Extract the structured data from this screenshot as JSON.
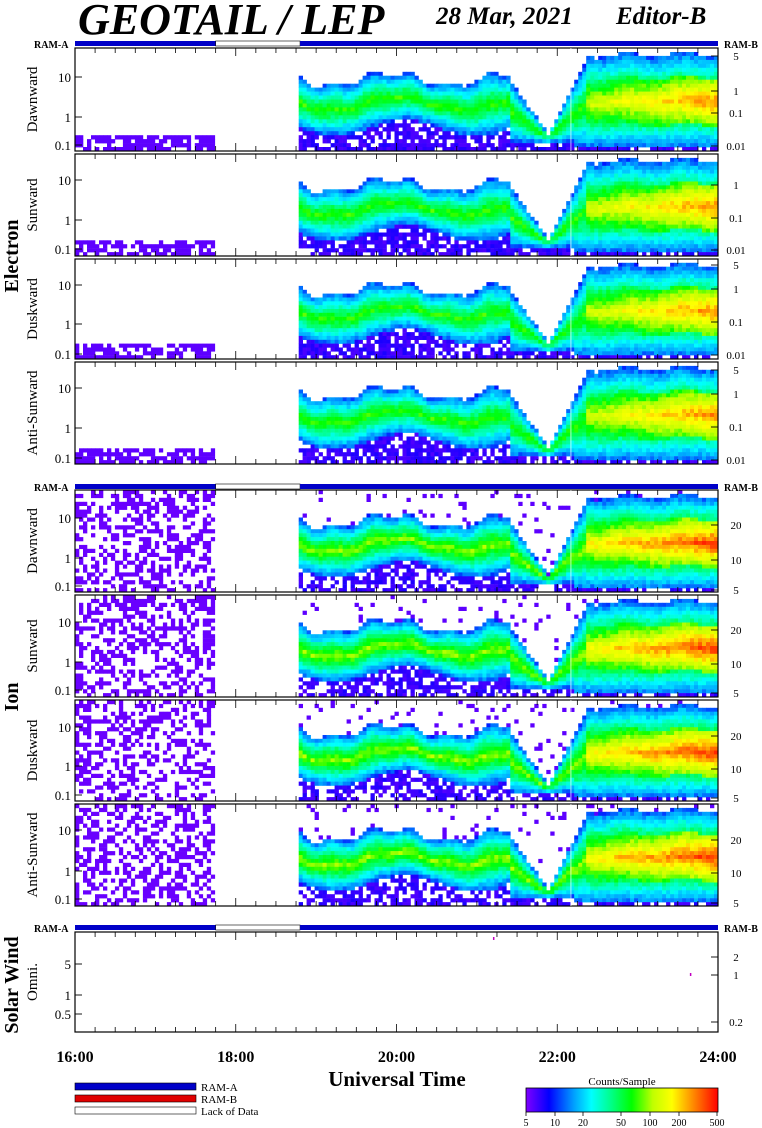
{
  "header": {
    "title": "GEOTAIL / LEP",
    "date": "28 Mar, 2021",
    "editor": "Editor-B"
  },
  "colors": {
    "ram_a": "#0000c8",
    "ram_b": "#e00000",
    "lack_of_data": "#ffffff",
    "spectrogram_scale": [
      "#8000ff",
      "#0000ff",
      "#00a0ff",
      "#00ffff",
      "#00ff80",
      "#00ff00",
      "#c0ff00",
      "#ffff00",
      "#ff8000",
      "#ff0000"
    ]
  },
  "labels": {
    "ram_a": "RAM-A",
    "ram_b": "RAM-B",
    "electron": "Electron",
    "ion": "Ion",
    "solar_wind": "Solar Wind",
    "xlabel": "Universal Time"
  },
  "legend": {
    "ram_a": "RAM-A",
    "ram_b": "RAM-B",
    "lack": "Lack of Data"
  },
  "colorbar": {
    "title": "Counts/Sample",
    "ticks": [
      "5",
      "10",
      "20",
      "50",
      "100",
      "200",
      "500"
    ]
  },
  "chart_data": {
    "type": "heatmap",
    "x_axis": {
      "label": "Universal Time",
      "range_hours": [
        16,
        24
      ],
      "tick_labels": [
        "16:00",
        "18:00",
        "20:00",
        "22:00",
        "24:00"
      ]
    },
    "data_gaps_hours": [
      [
        17.75,
        18.8
      ]
    ],
    "panels": [
      {
        "group": "Electron",
        "name": "Dawnward",
        "left_ticks": [
          "10",
          "1",
          "0.1"
        ],
        "right_ticks": [
          "5",
          "1",
          "0.1",
          "0.01"
        ]
      },
      {
        "group": "Electron",
        "name": "Sunward",
        "left_ticks": [
          "10",
          "1",
          "0.1"
        ],
        "right_ticks": [
          "1",
          "0.1",
          "0.01"
        ]
      },
      {
        "group": "Electron",
        "name": "Duskward",
        "left_ticks": [
          "10",
          "1",
          "0.1"
        ],
        "right_ticks": [
          "5",
          "1",
          "0.1",
          "0.01"
        ]
      },
      {
        "group": "Electron",
        "name": "Anti-Sunward",
        "left_ticks": [
          "10",
          "1",
          "0.1"
        ],
        "right_ticks": [
          "5",
          "1",
          "0.1",
          "0.01"
        ]
      },
      {
        "group": "Ion",
        "name": "Dawnward",
        "left_ticks": [
          "10",
          "1",
          "0.1"
        ],
        "right_ticks": [
          "20",
          "10",
          "5"
        ]
      },
      {
        "group": "Ion",
        "name": "Sunward",
        "left_ticks": [
          "10",
          "1",
          "0.1"
        ],
        "right_ticks": [
          "20",
          "10",
          "5"
        ]
      },
      {
        "group": "Ion",
        "name": "Duskward",
        "left_ticks": [
          "10",
          "1",
          "0.1"
        ],
        "right_ticks": [
          "20",
          "10",
          "5"
        ]
      },
      {
        "group": "Ion",
        "name": "Anti-Sunward",
        "left_ticks": [
          "10",
          "1",
          "0.1"
        ],
        "right_ticks": [
          "20",
          "10",
          "5"
        ]
      },
      {
        "group": "Solar Wind",
        "name": "Omni.",
        "left_ticks": [
          "5",
          "1",
          "0.5"
        ],
        "right_ticks": [
          "2",
          "1",
          "0.2"
        ]
      }
    ]
  }
}
